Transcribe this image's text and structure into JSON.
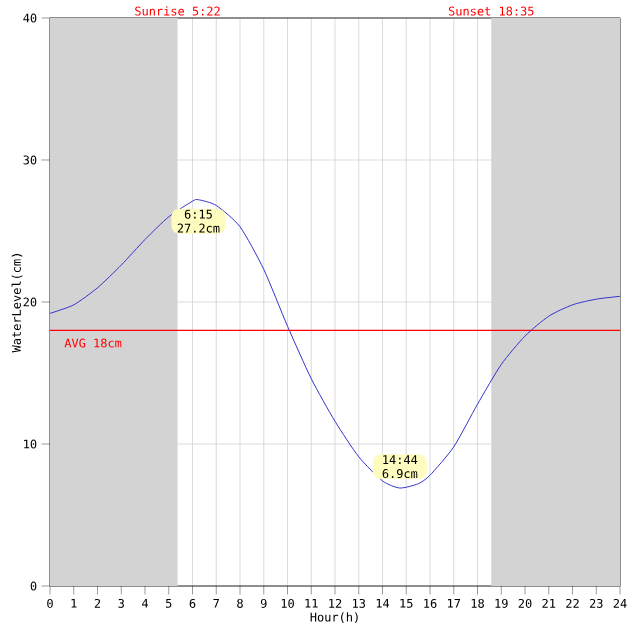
{
  "chart_data": {
    "type": "line",
    "xlabel": "Hour(h)",
    "ylabel": "WaterLevel(cm)",
    "xlim": [
      0,
      24
    ],
    "xticks": [
      0,
      1,
      2,
      3,
      4,
      5,
      6,
      7,
      8,
      9,
      10,
      11,
      12,
      13,
      14,
      15,
      16,
      17,
      18,
      19,
      20,
      21,
      22,
      23,
      24
    ],
    "ylim": [
      0,
      40
    ],
    "yticks": [
      0,
      10,
      20,
      30,
      40
    ],
    "grid": true,
    "series": [
      {
        "color": "#3333cc",
        "x": [
          0,
          1,
          2,
          3,
          4,
          5,
          6,
          6.25,
          7,
          8,
          9,
          10,
          11,
          12,
          13,
          14,
          14.73,
          15.5,
          16,
          17,
          18,
          19,
          20,
          21,
          22,
          23,
          24
        ],
        "values": [
          19.2,
          19.8,
          21.0,
          22.6,
          24.4,
          26.0,
          27.1,
          27.2,
          26.8,
          25.3,
          22.3,
          18.3,
          14.6,
          11.6,
          9.1,
          7.4,
          6.9,
          7.2,
          7.8,
          9.8,
          12.8,
          15.6,
          17.6,
          19.0,
          19.8,
          20.2,
          20.4
        ]
      }
    ],
    "bands": [
      {
        "axis": "x",
        "from": 0,
        "to": 5.37,
        "label": "Sunrise 5:22",
        "color": "#d3d3d3"
      },
      {
        "axis": "x",
        "from": 18.58,
        "to": 24,
        "label": "Sunset 18:35",
        "color": "#d3d3d3"
      }
    ],
    "ref_lines": [
      {
        "axis": "y",
        "value": 18,
        "label": "AVG 18cm",
        "color": "#ff0000"
      }
    ],
    "annotations": [
      {
        "text": "6:15 27.2cm",
        "x": 6.25,
        "y": 27.2
      },
      {
        "text": "14:44 6.9cm",
        "x": 14.73,
        "y": 6.9
      }
    ]
  }
}
